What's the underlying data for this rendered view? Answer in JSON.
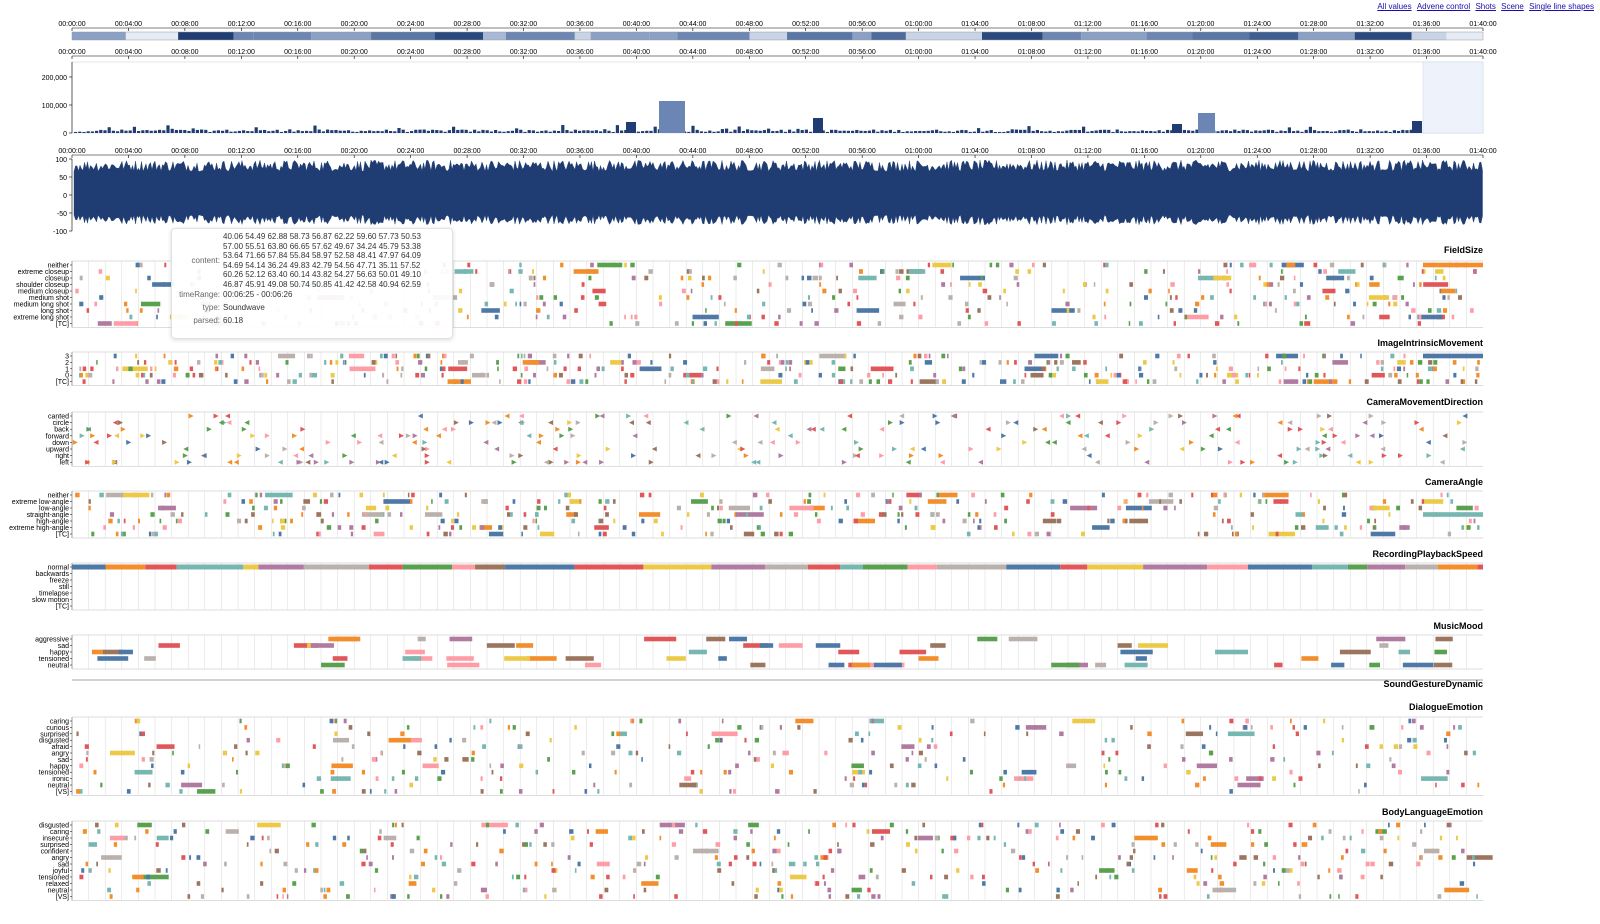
{
  "links": [
    "All values",
    "Advene control",
    "Shots",
    "Scene",
    "Single line shapes"
  ],
  "time_ticks": [
    "00:00:00",
    "00:04:00",
    "00:08:00",
    "00:12:00",
    "00:16:00",
    "00:20:00",
    "00:24:00",
    "00:28:00",
    "00:32:00",
    "00:36:00",
    "00:40:00",
    "00:44:00",
    "00:48:00",
    "00:52:00",
    "00:56:00",
    "01:00:00",
    "01:04:00",
    "01:08:00",
    "01:12:00",
    "01:16:00",
    "01:20:00",
    "01:24:00",
    "01:28:00",
    "01:32:00",
    "01:36:00",
    "01:40:00"
  ],
  "histogram": {
    "y_ticks": [
      "200,000",
      "100,000",
      "0"
    ]
  },
  "soundwave": {
    "y_ticks": [
      "100",
      "50",
      "0",
      "-50",
      "-100"
    ]
  },
  "tooltip": {
    "content_lines": [
      "40.06 54.49 62.88 58.73 56.87 62.22 59.60 57.73 50.53",
      "57.00 55.51 63.80 66.65 57.62 49.67 34.24 45.79 53.38",
      "53.64 71.66 57.84 55.84 58.97 52.58 48.41 47.97 64.09",
      "54.69 54.14 36.24 49.83 42.79 54.56 47.71 35.11 57.52",
      "60.26 52.12 63.40 60.14 43.82 54.27 56.63 50.01 49.10",
      "46.87 45.91 49.08 50.74 50.85 41.42 42.58 40.94 62.59"
    ],
    "content_label": "content:",
    "timeRange_label": "timeRange:",
    "timeRange": "00:06:25 - 00:06:26",
    "type_label": "type:",
    "type": "Soundwave",
    "parsed_label": "parsed:",
    "parsed": "60.18"
  },
  "panels": [
    {
      "title": "FieldSize",
      "labels": [
        "neither",
        "extreme closeup",
        "closeup",
        "shoulder closeup",
        "medium closeup",
        "medium shot",
        "medium long shot",
        "long shot",
        "extreme long shot",
        "[TC]"
      ]
    },
    {
      "title": "ImageIntrinsicMovement",
      "labels": [
        "3",
        "2",
        "1",
        "0",
        "[TC]"
      ]
    },
    {
      "title": "CameraMovementDirection",
      "labels": [
        "canted",
        "circle",
        "back",
        "forward",
        "down",
        "upward",
        "right",
        "left"
      ]
    },
    {
      "title": "CameraAngle",
      "labels": [
        "neither",
        "extreme low-angle",
        "low-angle",
        "straight-angle",
        "high-angle",
        "extreme high-angle",
        "[TC]"
      ]
    },
    {
      "title": "RecordingPlaybackSpeed",
      "labels": [
        "normal",
        "backwards",
        "freeze",
        "still",
        "timelapse",
        "slow motion",
        "[TC]"
      ]
    },
    {
      "title": "MusicMood",
      "labels": [
        "aggressive",
        "sad",
        "happy",
        "tensioned",
        "neutral"
      ]
    },
    {
      "title": "SoundGestureDynamic",
      "labels": []
    },
    {
      "title": "DialogueEmotion",
      "labels": [
        "caring",
        "curious",
        "surprised",
        "disgusted",
        "afraid",
        "angry",
        "sad",
        "happy",
        "tensioned",
        "ironic",
        "neutral",
        "[VS]"
      ]
    },
    {
      "title": "BodyLanguageEmotion",
      "labels": [
        "disgusted",
        "caring",
        "insecure",
        "surprised",
        "confident",
        "angry",
        "sad",
        "joyful",
        "tensioned",
        "relaxed",
        "neutral",
        "[VS]"
      ]
    }
  ],
  "colors": {
    "navy": "#1f3d73",
    "palette": [
      "#4e79a7",
      "#f28e2b",
      "#e15759",
      "#76b7b2",
      "#59a14f",
      "#edc948",
      "#b07aa1",
      "#ff9da7",
      "#9c755f",
      "#bab0ac"
    ]
  }
}
